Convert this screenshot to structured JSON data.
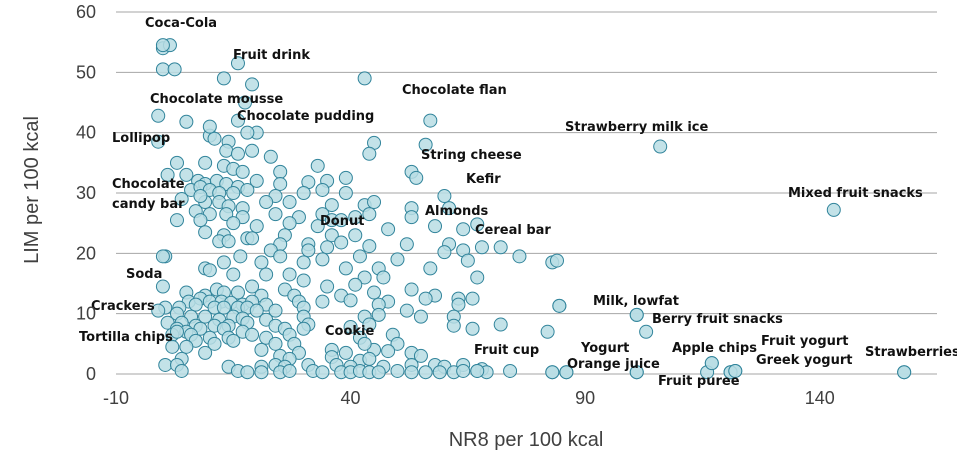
{
  "chart_data": {
    "type": "scatter",
    "title": "",
    "xlabel": "NR8 per 100 kcal",
    "ylabel": "LIM per 100 kcal",
    "xlim": [
      -10,
      165
    ],
    "ylim": [
      0,
      60
    ],
    "xticks": [
      -10,
      40,
      90,
      140
    ],
    "yticks": [
      0,
      10,
      20,
      30,
      40,
      50,
      60
    ],
    "grid": "horizontal",
    "colors": {
      "marker_fill": "#b9dde4",
      "marker_stroke": "#31849b",
      "grid": "#a6a6a6",
      "text": "#404040"
    },
    "labeled_points": [
      {
        "name": "Coca-Cola",
        "x": 0,
        "y": 54.5
      },
      {
        "name": "Fruit drink",
        "x": 16,
        "y": 51.5
      },
      {
        "name": "Chocolate flan",
        "x": 57,
        "y": 42
      },
      {
        "name": "Chocolate mousse",
        "x": 10,
        "y": 41
      },
      {
        "name": "Chocolate pudding",
        "x": 18,
        "y": 40
      },
      {
        "name": "Lollipop",
        "x": -1,
        "y": 38.5
      },
      {
        "name": "Strawberry milk ice",
        "x": 106,
        "y": 37.7
      },
      {
        "name": "String cheese",
        "x": 56,
        "y": 38
      },
      {
        "name": "Kefir",
        "x": 60,
        "y": 29.5
      },
      {
        "name": "Mixed fruit snacks",
        "x": 143,
        "y": 27.2
      },
      {
        "name": "Chocolate candy bar",
        "x": 8,
        "y": 29.5
      },
      {
        "name": "Almonds",
        "x": 58,
        "y": 24.5
      },
      {
        "name": "Donut",
        "x": 38,
        "y": 25.5
      },
      {
        "name": "Cereal bar",
        "x": 64,
        "y": 24
      },
      {
        "name": "Soda",
        "x": 0,
        "y": 19.5
      },
      {
        "name": "Milk, lowfat",
        "x": 84.5,
        "y": 11.3
      },
      {
        "name": "Crackers",
        "x": -1,
        "y": 10.5
      },
      {
        "name": "Berry fruit snacks",
        "x": 101,
        "y": 9.8
      },
      {
        "name": "Tortilla chips",
        "x": 3,
        "y": 7
      },
      {
        "name": "Cookie",
        "x": 43,
        "y": 5
      },
      {
        "name": "Fruit yogurt",
        "x": 121,
        "y": 0.3
      },
      {
        "name": "Fruit cup",
        "x": 67,
        "y": 0.5
      },
      {
        "name": "Yogurt",
        "x": 83,
        "y": 0.3
      },
      {
        "name": "Apple chips",
        "x": 117,
        "y": 1.8
      },
      {
        "name": "Orange juice",
        "x": 86,
        "y": 0.3
      },
      {
        "name": "Greek yogurt",
        "x": 122,
        "y": 0.5
      },
      {
        "name": "Strawberries",
        "x": 158,
        "y": 0.3
      },
      {
        "name": "Fruit puree",
        "x": 101,
        "y": 0.3
      }
    ],
    "points": [
      [
        0,
        54
      ],
      [
        1.5,
        54.5
      ],
      [
        0,
        50.5
      ],
      [
        2.5,
        50.5
      ],
      [
        13,
        49
      ],
      [
        19,
        48
      ],
      [
        43,
        49
      ],
      [
        17.5,
        45
      ],
      [
        16,
        42
      ],
      [
        5,
        41.8
      ],
      [
        20,
        40
      ],
      [
        -1,
        42.8
      ],
      [
        10,
        39.5
      ],
      [
        11,
        39
      ],
      [
        14,
        38.5
      ],
      [
        13.5,
        37
      ],
      [
        19,
        37
      ],
      [
        16,
        36.5
      ],
      [
        23,
        36
      ],
      [
        45,
        38.3
      ],
      [
        44,
        36.5
      ],
      [
        3,
        35
      ],
      [
        9,
        35
      ],
      [
        13,
        34.5
      ],
      [
        15,
        34
      ],
      [
        17,
        33.5
      ],
      [
        25,
        33.5
      ],
      [
        33,
        34.5
      ],
      [
        39,
        32.5
      ],
      [
        53,
        33.5
      ],
      [
        54,
        32.5
      ],
      [
        1,
        33
      ],
      [
        5,
        33
      ],
      [
        7.5,
        32
      ],
      [
        9,
        31.5
      ],
      [
        11.5,
        32
      ],
      [
        13.5,
        31.5
      ],
      [
        16,
        31
      ],
      [
        20,
        32
      ],
      [
        25,
        31.5
      ],
      [
        31,
        31.8
      ],
      [
        35,
        32
      ],
      [
        6,
        30.5
      ],
      [
        8,
        31
      ],
      [
        10,
        30.5
      ],
      [
        12,
        30
      ],
      [
        15,
        30
      ],
      [
        18,
        30.5
      ],
      [
        24,
        29.5
      ],
      [
        30,
        30
      ],
      [
        34,
        30.5
      ],
      [
        39,
        30
      ],
      [
        4,
        29
      ],
      [
        9,
        28.5
      ],
      [
        12,
        28.5
      ],
      [
        14,
        27.8
      ],
      [
        17,
        27.5
      ],
      [
        22,
        28.5
      ],
      [
        27,
        28.5
      ],
      [
        36,
        28
      ],
      [
        43,
        28
      ],
      [
        45,
        28.5
      ],
      [
        53,
        27.5
      ],
      [
        61,
        27.5
      ],
      [
        7,
        27
      ],
      [
        10,
        26.5
      ],
      [
        13.5,
        26.5
      ],
      [
        17,
        26
      ],
      [
        24,
        26.5
      ],
      [
        29,
        26
      ],
      [
        34,
        26.5
      ],
      [
        41,
        26
      ],
      [
        44,
        26.5
      ],
      [
        53,
        26
      ],
      [
        3,
        25.5
      ],
      [
        8,
        25.5
      ],
      [
        15,
        25
      ],
      [
        20,
        24.5
      ],
      [
        27,
        25
      ],
      [
        33,
        24.5
      ],
      [
        36,
        25.5
      ],
      [
        67,
        24.8
      ],
      [
        9,
        23.5
      ],
      [
        13,
        23
      ],
      [
        18,
        22.5
      ],
      [
        26,
        23
      ],
      [
        36,
        23
      ],
      [
        41,
        23
      ],
      [
        48,
        24
      ],
      [
        12,
        22
      ],
      [
        14,
        22
      ],
      [
        19,
        22.5
      ],
      [
        25,
        21.5
      ],
      [
        31,
        21.5
      ],
      [
        38,
        21.8
      ],
      [
        44,
        21.2
      ],
      [
        52,
        21.5
      ],
      [
        61,
        21.5
      ],
      [
        64,
        20.5
      ],
      [
        68,
        21
      ],
      [
        23,
        20.5
      ],
      [
        31,
        20.5
      ],
      [
        35,
        21
      ],
      [
        60,
        20.2
      ],
      [
        72,
        21
      ],
      [
        0.5,
        19.5
      ],
      [
        16.5,
        19.5
      ],
      [
        25,
        19.5
      ],
      [
        34,
        19
      ],
      [
        42,
        19.5
      ],
      [
        50,
        19
      ],
      [
        65,
        18.8
      ],
      [
        76,
        19.5
      ],
      [
        83,
        18.5
      ],
      [
        84,
        18.8
      ],
      [
        13,
        18.5
      ],
      [
        21,
        18.5
      ],
      [
        30,
        18.5
      ],
      [
        57,
        17.5
      ],
      [
        9,
        17.5
      ],
      [
        10,
        17.2
      ],
      [
        22,
        16.5
      ],
      [
        27,
        16.5
      ],
      [
        39,
        17.5
      ],
      [
        46,
        17.5
      ],
      [
        15,
        16.5
      ],
      [
        30,
        15.5
      ],
      [
        43,
        16
      ],
      [
        47,
        16
      ],
      [
        67,
        16
      ],
      [
        0,
        14.5
      ],
      [
        11.5,
        14
      ],
      [
        19,
        14.5
      ],
      [
        26,
        14
      ],
      [
        35,
        14.5
      ],
      [
        41,
        14.8
      ],
      [
        53,
        14
      ],
      [
        5,
        13.5
      ],
      [
        9,
        13
      ],
      [
        13,
        13.5
      ],
      [
        16,
        13.5
      ],
      [
        21,
        13
      ],
      [
        28,
        13
      ],
      [
        38,
        13
      ],
      [
        45,
        13.5
      ],
      [
        58,
        13
      ],
      [
        63,
        12.5
      ],
      [
        66,
        12.5
      ],
      [
        5.5,
        12
      ],
      [
        8,
        12.5
      ],
      [
        10,
        12
      ],
      [
        12.5,
        12
      ],
      [
        14.5,
        11.8
      ],
      [
        17,
        11.5
      ],
      [
        19,
        12
      ],
      [
        22,
        11.5
      ],
      [
        29,
        12
      ],
      [
        34,
        12
      ],
      [
        40,
        12.2
      ],
      [
        48,
        12
      ],
      [
        56,
        12.5
      ],
      [
        0.5,
        11
      ],
      [
        3.5,
        11
      ],
      [
        7,
        11.5
      ],
      [
        11,
        11
      ],
      [
        13,
        11
      ],
      [
        16,
        11
      ],
      [
        18,
        11
      ],
      [
        20,
        10.5
      ],
      [
        24,
        10.5
      ],
      [
        30,
        11
      ],
      [
        46,
        11.5
      ],
      [
        52,
        10.5
      ],
      [
        63,
        11.5
      ],
      [
        84.5,
        11.3
      ],
      [
        3,
        10
      ],
      [
        6,
        9.5
      ],
      [
        9,
        9.5
      ],
      [
        12,
        9
      ],
      [
        15,
        9.5
      ],
      [
        17,
        9.2
      ],
      [
        22,
        9
      ],
      [
        30,
        9.5
      ],
      [
        43,
        9.5
      ],
      [
        46,
        9.8
      ],
      [
        55,
        9.5
      ],
      [
        62,
        9.5
      ],
      [
        101,
        9.8
      ],
      [
        1,
        8.5
      ],
      [
        4,
        8.5
      ],
      [
        7,
        8
      ],
      [
        11,
        8
      ],
      [
        14,
        8
      ],
      [
        18,
        8.5
      ],
      [
        24,
        8
      ],
      [
        31,
        8.2
      ],
      [
        40,
        7.8
      ],
      [
        44,
        8.2
      ],
      [
        62,
        8
      ],
      [
        72,
        8.2
      ],
      [
        3,
        7.5
      ],
      [
        5,
        7
      ],
      [
        8,
        7.5
      ],
      [
        13,
        7.5
      ],
      [
        17,
        7
      ],
      [
        26,
        7.5
      ],
      [
        30,
        7.5
      ],
      [
        66,
        7.5
      ],
      [
        82,
        7
      ],
      [
        103,
        7
      ],
      [
        2,
        6.5
      ],
      [
        6,
        6.5
      ],
      [
        10,
        6
      ],
      [
        14,
        6
      ],
      [
        19,
        6.5
      ],
      [
        22,
        6
      ],
      [
        27,
        6.5
      ],
      [
        42,
        6
      ],
      [
        49,
        6.5
      ],
      [
        7,
        5.5
      ],
      [
        11,
        5
      ],
      [
        15,
        5.5
      ],
      [
        24,
        5
      ],
      [
        28,
        5
      ],
      [
        50,
        5
      ],
      [
        2,
        4.5
      ],
      [
        5,
        4.5
      ],
      [
        21,
        4
      ],
      [
        36,
        4
      ],
      [
        45,
        4
      ],
      [
        48,
        3.8
      ],
      [
        9,
        3.5
      ],
      [
        25,
        3
      ],
      [
        29,
        3.5
      ],
      [
        39,
        3.5
      ],
      [
        53,
        3.5
      ],
      [
        55,
        3
      ],
      [
        4,
        2.5
      ],
      [
        27,
        2.5
      ],
      [
        36,
        2.8
      ],
      [
        42,
        2.2
      ],
      [
        44,
        2.5
      ],
      [
        0.5,
        1.5
      ],
      [
        3,
        1.5
      ],
      [
        14,
        1.2
      ],
      [
        21,
        1.2
      ],
      [
        24,
        1.5
      ],
      [
        26,
        1.2
      ],
      [
        31,
        1.5
      ],
      [
        37,
        1.5
      ],
      [
        40,
        1.2
      ],
      [
        47,
        1.2
      ],
      [
        53,
        1.5
      ],
      [
        58,
        1.5
      ],
      [
        60,
        1.2
      ],
      [
        64,
        1.5
      ],
      [
        68,
        0.8
      ],
      [
        117,
        1.8
      ],
      [
        4,
        0.5
      ],
      [
        16,
        0.5
      ],
      [
        18,
        0.3
      ],
      [
        21,
        0.3
      ],
      [
        25,
        0.3
      ],
      [
        27,
        0.5
      ],
      [
        32,
        0.5
      ],
      [
        34,
        0.3
      ],
      [
        38,
        0.3
      ],
      [
        40,
        0.3
      ],
      [
        42,
        0.5
      ],
      [
        44,
        0.3
      ],
      [
        46,
        0.3
      ],
      [
        50,
        0.5
      ],
      [
        53,
        0.3
      ],
      [
        56,
        0.3
      ],
      [
        59,
        0.3
      ],
      [
        62,
        0.3
      ],
      [
        64,
        0.5
      ],
      [
        67,
        0.5
      ],
      [
        69,
        0.3
      ],
      [
        74,
        0.5
      ],
      [
        83,
        0.3
      ],
      [
        86,
        0.3
      ],
      [
        101,
        0.3
      ],
      [
        116,
        0.3
      ],
      [
        121,
        0.3
      ],
      [
        122,
        0.5
      ],
      [
        158,
        0.3
      ]
    ]
  }
}
